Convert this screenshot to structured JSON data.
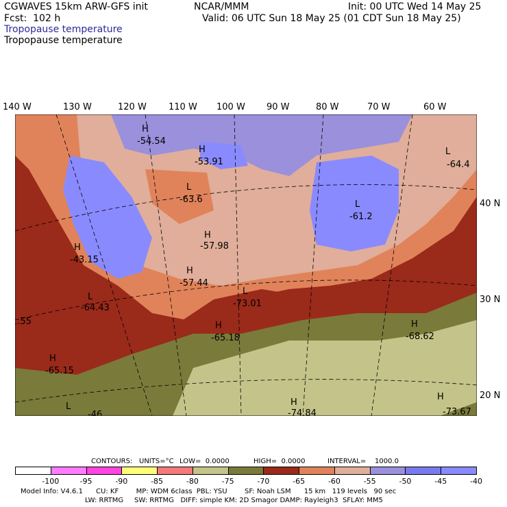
{
  "header": {
    "model_title": "CGWAVES 15km ARW-GFS init",
    "forecast": "Fcst:  102 h",
    "field_name_1": "Tropopause temperature",
    "field_name_2": "Tropopause temperature",
    "org": "NCAR/MMM",
    "init": "Init: 00 UTC Wed 14 May 25",
    "valid": "Valid: 06 UTC Sun 18 May 25 (01 CDT Sun 18 May 25)"
  },
  "axes": {
    "lon_labels": [
      "140 W",
      "130 W",
      "120 W",
      "110 W",
      "100 W",
      "90 W",
      "80 W",
      "70 W",
      "60 W"
    ],
    "lat_labels": [
      "40 N",
      "30 N",
      "20 N"
    ]
  },
  "map_labels": [
    {
      "type": "H",
      "value": "-54.54"
    },
    {
      "type": "H",
      "value": "-53.91"
    },
    {
      "type": "L",
      "value": "-63.6"
    },
    {
      "type": "H",
      "value": "-57.98"
    },
    {
      "type": "H",
      "value": "-57.44"
    },
    {
      "type": "L",
      "value": "-73.01"
    },
    {
      "type": "H",
      "value": "-43.15"
    },
    {
      "type": "L",
      "value": "-64.43"
    },
    {
      "type": "H",
      "value": "-65.18"
    },
    {
      "type": "L",
      "value": "-61.2"
    },
    {
      "type": "L",
      "value": "-64.4"
    },
    {
      "type": "H",
      "value": "-68.62"
    },
    {
      "type": "H",
      "value": "-65.15"
    },
    {
      "type": "",
      "value": "-71.55"
    },
    {
      "type": "H",
      "value": "-74.84"
    },
    {
      "type": "H",
      "value": "-73.67"
    },
    {
      "type": "L",
      "value": "-46"
    }
  ],
  "contours": {
    "label": "CONTOURS:",
    "units": "UNITS=°C",
    "low": "LOW=  0.0000",
    "high": "HIGH=  0.0000",
    "interval": "INTERVAL=    1000.0"
  },
  "legend": {
    "labels": [
      "-100",
      "-95",
      "-90",
      "-85",
      "-80",
      "-75",
      "-70",
      "-65",
      "-60",
      "-55",
      "-50",
      "-45",
      "-40",
      "°C"
    ],
    "colors": [
      "#ffffff",
      "#ff7bff",
      "#ff44e0",
      "#ffff7a",
      "#f47a7a",
      "#c4c48a",
      "#7a7a3a",
      "#9a2a1a",
      "#e0835a",
      "#e0ae9a",
      "#9a90dc",
      "#7a7af0",
      "#8a8aff"
    ]
  },
  "footer": {
    "line1": "Model Info: V4.6.1      CU: KF        MP: WDM 6class  PBL: YSU        SF: Noah LSM      15 km   119 levels   90 sec",
    "line2": "LW: RRTMG     SW: RRTMG   DIFF: simple KM: 2D Smagor DAMP: Rayleigh3  SFLAY: MM5"
  },
  "colors": {
    "cold_deep": "#7a7a3a",
    "cold_light": "#c4c48a",
    "warm_red": "#9a2a1a",
    "orange": "#e0835a",
    "pink": "#e0ae9a",
    "lavender": "#9a90dc",
    "blue": "#7a7af0"
  }
}
